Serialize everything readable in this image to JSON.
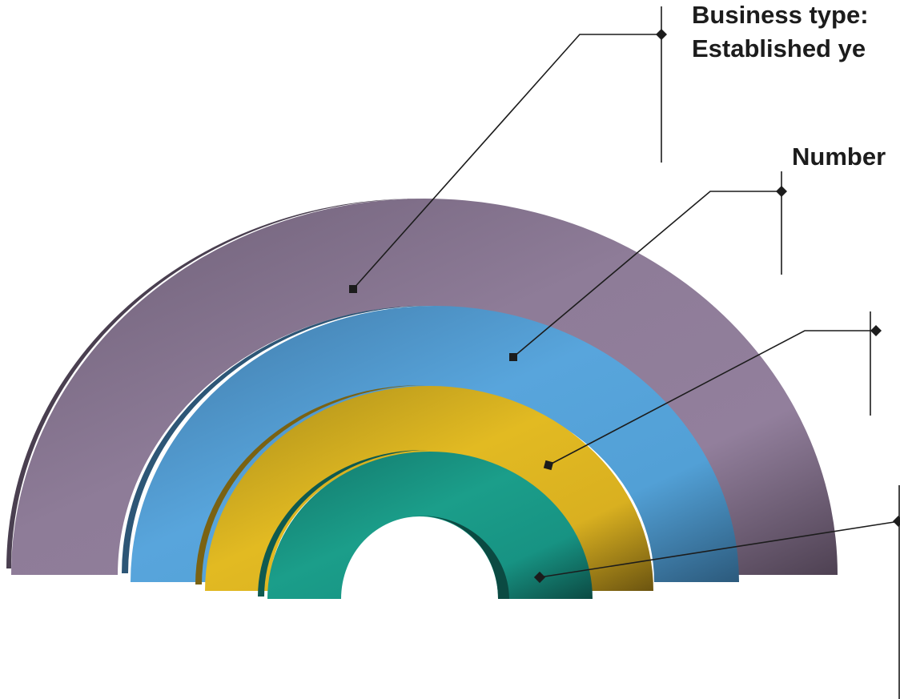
{
  "labels": {
    "business_type": "Business type:",
    "established_year": "Established ye",
    "number": "Number"
  },
  "rings": [
    {
      "name": "outer-ring",
      "color": "#8f7d98"
    },
    {
      "name": "second-ring",
      "color": "#55a2d8"
    },
    {
      "name": "third-ring",
      "color": "#e0b821"
    },
    {
      "name": "inner-ring",
      "color": "#1a9c89"
    }
  ],
  "colors": {
    "leader_line": "#1c1c1c",
    "text": "#1c1c1c"
  }
}
